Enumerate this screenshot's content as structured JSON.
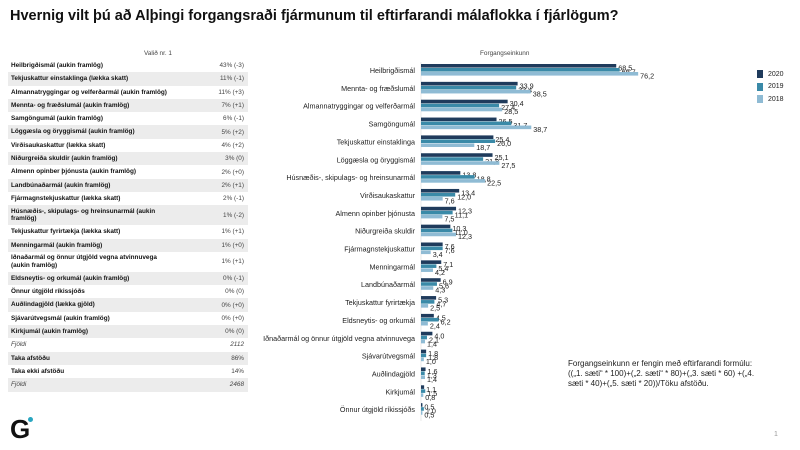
{
  "title": "Hvernig vilt þú að Alþingi forgangsraði fjármunum til eftirfarandi málaflokka í fjárlögum?",
  "table": {
    "header": "Valið nr. 1",
    "rows": [
      {
        "label": "Heilbrigðismál (aukin framlög)",
        "value": "43% (-3)"
      },
      {
        "label": "Tekjuskattur einstaklinga (lækka skatt)",
        "value": "11% (-1)"
      },
      {
        "label": "Almannatryggingar og velferðarmál (aukin framlög)",
        "value": "11% (+3)"
      },
      {
        "label": "Mennta- og fræðslumál (aukin framlög)",
        "value": "7% (+1)"
      },
      {
        "label": "Samgöngumál (aukin framlög)",
        "value": "6% (-1)"
      },
      {
        "label": "Löggæsla og öryggismál (aukin framlög)",
        "value": "5% (+2)"
      },
      {
        "label": "Virðisaukaskattur (lækka skatt)",
        "value": "4% (+2)"
      },
      {
        "label": "Niðurgreiða skuldir (aukin framlög)",
        "value": "3% (0)"
      },
      {
        "label": "Almenn opinber þjónusta (aukin framlög)",
        "value": "2% (+0)"
      },
      {
        "label": "Landbúnaðarmál (aukin framlög)",
        "value": "2% (+1)"
      },
      {
        "label": "Fjármagnstekjuskattur (lækka skatt)",
        "value": "2% (-1)"
      },
      {
        "label": "Húsnæðis-, skipulags- og hreinsunarmál (aukin framlög)",
        "value": "1% (-2)",
        "tall": true
      },
      {
        "label": "Tekjuskattur fyrirtækja (lækka skatt)",
        "value": "1% (+1)"
      },
      {
        "label": "Menningarmál (aukin framlög)",
        "value": "1% (+0)"
      },
      {
        "label": "Iðnaðarmál og önnur útgjöld vegna atvinnuvega (aukin framlög)",
        "value": "1% (+1)",
        "tall": true
      },
      {
        "label": "Eldsneytis- og orkumál (aukin framlög)",
        "value": "0% (-1)"
      },
      {
        "label": "Önnur útgjöld ríkissjóðs",
        "value": "0% (0)"
      },
      {
        "label": "Auðlindagjöld (lækka gjöld)",
        "value": "0% (+0)"
      },
      {
        "label": "Sjávarútvegsmál (aukin framlög)",
        "value": "0% (+0)"
      },
      {
        "label": "Kirkjumál (aukin framlög)",
        "value": "0% (0)"
      },
      {
        "label": "Fjöldi",
        "value": "2112",
        "italic": true
      },
      {
        "label": "Taka afstöðu",
        "value": "86%"
      },
      {
        "label": "Taka ekki afstöðu",
        "value": "14%"
      },
      {
        "label": "Fjöldi",
        "value": "2468",
        "italic": true
      }
    ]
  },
  "chart_data": {
    "type": "bar",
    "orientation": "horizontal",
    "title": "Forgangseinkunn",
    "legend_position": "right",
    "categories": [
      "Heilbrigðismál",
      "Mennta- og fræðslumál",
      "Almannatryggingar og velferðarmál",
      "Samgöngumál",
      "Tekjuskattur einstaklinga",
      "Löggæsla og öryggismál",
      "Húsnæðis-, skipulags- og hreinsunarmál",
      "Virðisaukaskattur",
      "Almenn opinber þjónusta",
      "Niðurgreiða skuldir",
      "Fjármagnstekjuskattur",
      "Menningarmál",
      "Landbúnaðarmál",
      "Tekjuskattur fyrirtækja",
      "Eldsneytis- og orkumál",
      "Iðnaðarmál og önnur útgjöld vegna atvinnuvega",
      "Sjávarútvegsmál",
      "Auðlindagjöld",
      "Kirkjumál",
      "Önnur útgjöld ríkissjóðs"
    ],
    "series": [
      {
        "name": "2020",
        "color": "#1f3b5c",
        "values": [
          68.5,
          33.9,
          30.4,
          26.5,
          25.4,
          25.1,
          13.8,
          13.4,
          12.3,
          10.3,
          7.6,
          7.1,
          6.9,
          5.3,
          4.5,
          4.0,
          1.8,
          1.6,
          1.1,
          0.5
        ]
      },
      {
        "name": "2019",
        "color": "#3a8aa8",
        "values": [
          69.7,
          33.4,
          27.4,
          31.7,
          26.0,
          21.8,
          18.8,
          12.0,
          11.1,
          11.0,
          7.6,
          5.4,
          5.6,
          4.7,
          6.2,
          2.1,
          1.8,
          1.3,
          1.5,
          1.0
        ]
      },
      {
        "name": "2018",
        "color": "#8fbbd4",
        "values": [
          76.2,
          38.5,
          28.5,
          38.7,
          18.7,
          27.5,
          22.5,
          7.6,
          7.5,
          12.3,
          3.4,
          4.2,
          4.3,
          2.5,
          2.4,
          1.4,
          1.0,
          1.4,
          0.8,
          0.5
        ]
      }
    ],
    "xlim": [
      0,
      80
    ],
    "grid": false
  },
  "note": "Forgangseinkunn er fengin með eftirfarandi formúlu: ((„1. sæti“ * 100)+(„2. sæti“ * 80)+(„3. sæti * 60) +(„4. sæti * 40)+(„5. sæti * 20))/Töku afstöðu.",
  "logo": "G",
  "page_number": "1"
}
